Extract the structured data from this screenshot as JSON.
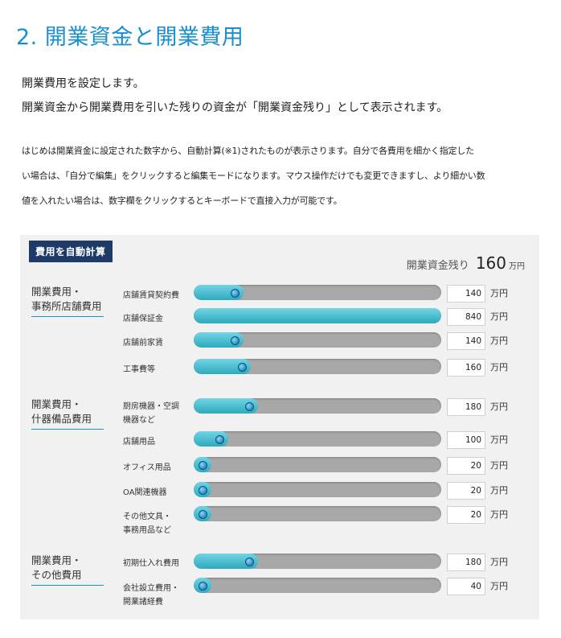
{
  "heading": "2. 開業資金と開業費用",
  "lead_lines": [
    "開業費用を設定します。",
    "開業資金から開業費用を引いた残りの資金が「開業資金残り」として表示されます。"
  ],
  "body_lines": [
    "はじめは開業資金に設定された数字から、自動計算(※1)されたものが表示さります。自分で各費用を細かく指定した",
    "い場合は、「自分で編集」をクリックすると編集モードになります。マウス操作だけでも変更できますし、より細かい数",
    "値を入れたい場合は、数字欄をクリックするとキーボードで直接入力が可能です。"
  ],
  "auto_button_label": "費用を自動計算",
  "remaining": {
    "label": "開業資金残り",
    "value": "160",
    "unit": "万円"
  },
  "unit": "万円",
  "groups": [
    {
      "label_lines": [
        "開業費用・",
        "事務所店舗費用"
      ]
    },
    {
      "label_lines": [
        "開業費用・",
        "什器備品費用"
      ]
    },
    {
      "label_lines": [
        "開業費用・",
        "その他費用"
      ]
    }
  ],
  "items": [
    {
      "label_lines": [
        "店舗賃貸契約費"
      ],
      "value": "140",
      "level": 0.2
    },
    {
      "label_lines": [
        "店舗保証金"
      ],
      "value": "840",
      "level": 1.0
    },
    {
      "label_lines": [
        "店舗前家賃"
      ],
      "value": "140",
      "level": 0.2
    },
    {
      "label_lines": [
        "工事費等"
      ],
      "value": "160",
      "level": 0.23
    },
    {
      "label_lines": [
        "厨房機器・空調",
        "機器など"
      ],
      "value": "180",
      "level": 0.26
    },
    {
      "label_lines": [
        "店舗用品"
      ],
      "value": "100",
      "level": 0.14
    },
    {
      "label_lines": [
        "オフィス用品"
      ],
      "value": "20",
      "level": 0.03
    },
    {
      "label_lines": [
        "OA関連機器"
      ],
      "value": "20",
      "level": 0.03
    },
    {
      "label_lines": [
        "その他文具・",
        "事務用品など"
      ],
      "value": "20",
      "level": 0.03
    },
    {
      "label_lines": [
        "初期仕入れ費用"
      ],
      "value": "180",
      "level": 0.26
    },
    {
      "label_lines": [
        "会社設立費用・",
        "開業諸経費"
      ],
      "value": "40",
      "level": 0.06
    }
  ]
}
